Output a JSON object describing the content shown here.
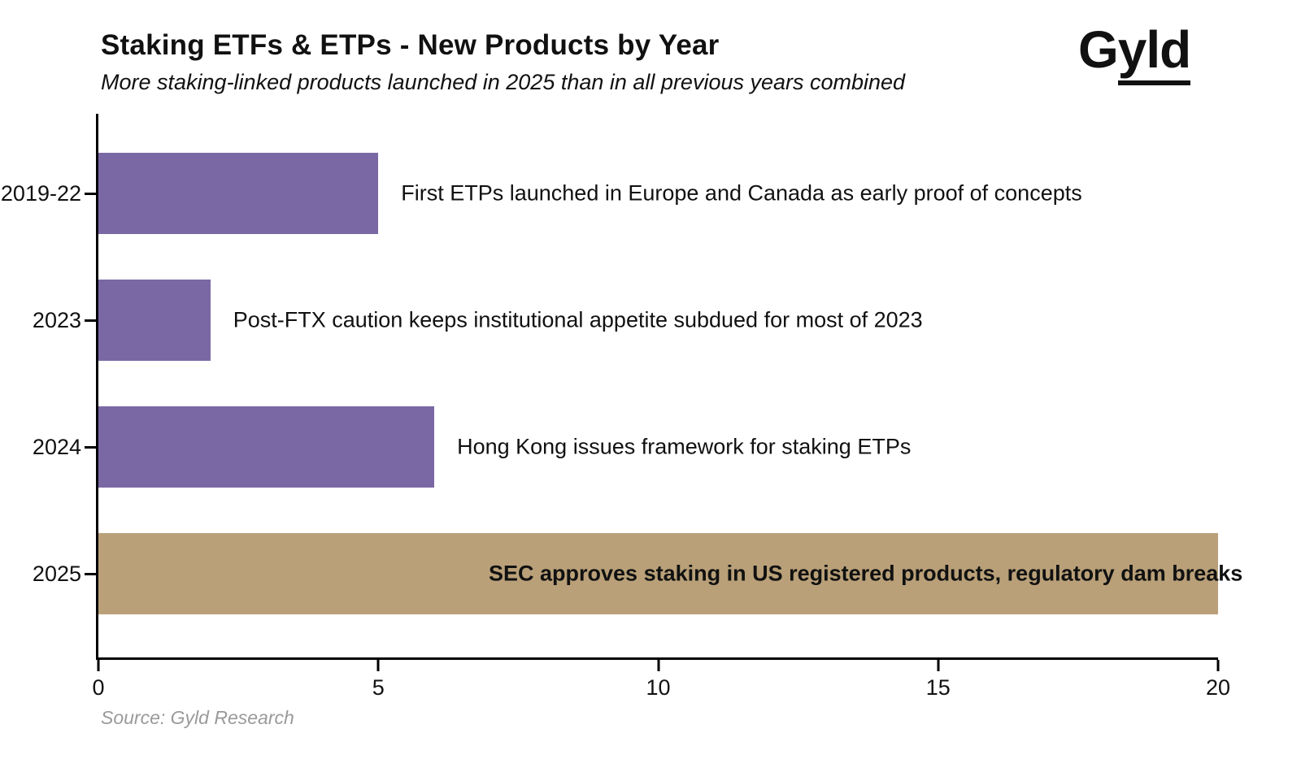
{
  "header": {
    "title": "Staking ETFs & ETPs - New Products by Year",
    "subtitle": "More staking-linked products launched in 2025 than in all previous years combined",
    "logo_g": "G",
    "logo_rest": "yld"
  },
  "chart_data": {
    "type": "bar",
    "orientation": "horizontal",
    "title": "Staking ETFs & ETPs - New Products by Year",
    "subtitle": "More staking-linked products launched in 2025 than in all previous years combined",
    "categories": [
      "2019-22",
      "2023",
      "2024",
      "2025"
    ],
    "values": [
      5,
      2,
      6,
      20
    ],
    "annotations": [
      "First ETPs launched in Europe and Canada as early proof of concepts",
      "Post-FTX caution keeps institutional appetite subdued for most of 2023",
      "Hong Kong issues framework for staking ETPs",
      "SEC approves staking in US registered products, regulatory dam breaks"
    ],
    "bar_colors": [
      "#7A68A5",
      "#7A68A5",
      "#7A68A5",
      "#B9A078"
    ],
    "xlim": [
      0,
      20
    ],
    "x_ticks": [
      0,
      5,
      10,
      15,
      20
    ],
    "x_tick_labels": [
      "0",
      "5",
      "10",
      "15",
      "20"
    ],
    "grid": false,
    "legend": "none"
  },
  "footer": {
    "source": "Source: Gyld Research"
  }
}
